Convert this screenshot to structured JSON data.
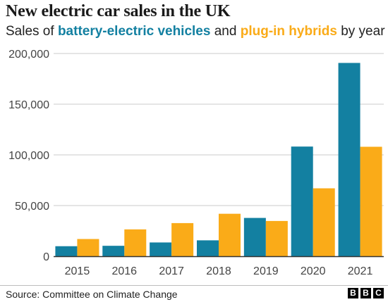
{
  "title": "New electric car sales in the UK",
  "subtitle": {
    "prefix": "Sales of ",
    "bev_text": "battery-electric vehicles",
    "middle": " and ",
    "phev_text": "plug-in hybrids",
    "suffix": " by year"
  },
  "colors": {
    "bev": "#1380A1",
    "phev": "#FAAB18",
    "grid": "#cbcbcb",
    "axis_text": "#444444"
  },
  "source": "Source: Committee on Climate Change",
  "logo_letters": [
    "B",
    "B",
    "C"
  ],
  "chart_data": {
    "type": "bar",
    "title": "New electric car sales in the UK",
    "subtitle": "Sales of battery-electric vehicles and plug-in hybrids by year",
    "categories": [
      "2015",
      "2016",
      "2017",
      "2018",
      "2019",
      "2020",
      "2021"
    ],
    "series": [
      {
        "name": "battery-electric vehicles",
        "values": [
          9900,
          10300,
          13600,
          15700,
          37800,
          108200,
          190700
        ]
      },
      {
        "name": "plug-in hybrids",
        "values": [
          17000,
          26500,
          32700,
          41900,
          34800,
          67000,
          108000
        ]
      }
    ],
    "ylim": [
      0,
      200000
    ],
    "yticks": [
      0,
      50000,
      100000,
      150000,
      200000
    ],
    "ytick_labels": [
      "0",
      "50,000",
      "100,000",
      "150,000",
      "200,000"
    ],
    "xlabel": "",
    "ylabel": "",
    "grid": true,
    "legend": "in subtitle"
  }
}
